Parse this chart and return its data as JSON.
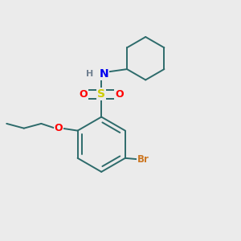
{
  "background_color": "#ebebeb",
  "bond_color": "#2d6b6b",
  "colors": {
    "S": "#cccc00",
    "O": "#ff0000",
    "N": "#0000ee",
    "H": "#708090",
    "Br": "#cc7722",
    "C": "#2d6b6b"
  },
  "line_width": 1.4,
  "figsize": [
    3.0,
    3.0
  ],
  "dpi": 100,
  "xlim": [
    0.0,
    1.0
  ],
  "ylim": [
    0.0,
    1.0
  ]
}
